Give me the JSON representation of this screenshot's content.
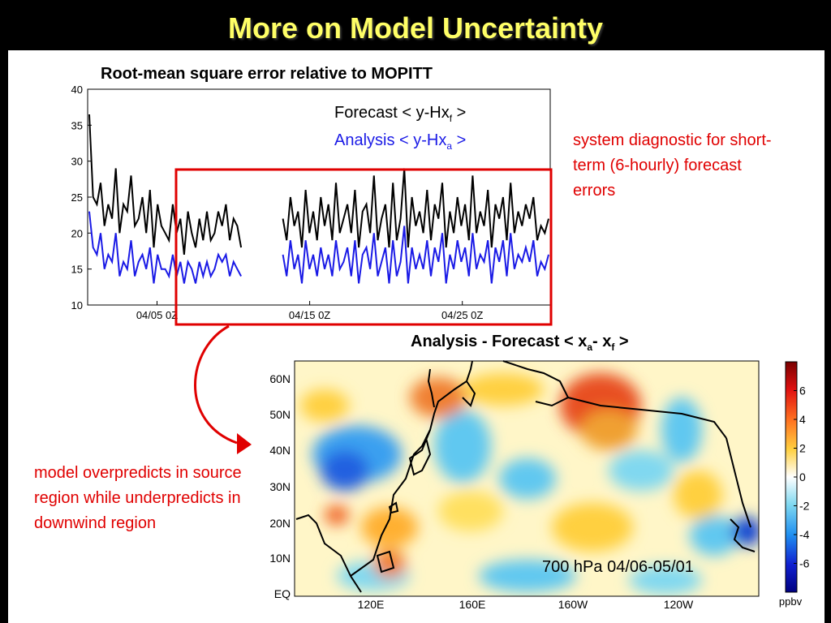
{
  "slide": {
    "title": "More on Model Uncertainty"
  },
  "colors": {
    "title": "#ffff66",
    "forecast": "#000000",
    "analysis": "#1a1ae6",
    "highlight": "#e00000"
  },
  "timeseries": {
    "title": "Root-mean square error relative to MOPITT",
    "legend": {
      "forecast_prefix": "Forecast < y-Hx",
      "forecast_sub": "f",
      "forecast_suffix": " >",
      "analysis_prefix": "Analysis < y-Hx",
      "analysis_sub": "a",
      "analysis_suffix": " >"
    },
    "note": "system diagnostic for short-term (6-hourly) forecast errors"
  },
  "map": {
    "title_prefix": "Analysis - Forecast < x",
    "title_sub1": "a",
    "title_mid": "- x",
    "title_sub2": "f",
    "title_suffix": " >",
    "label": "700 hPa 04/06-05/01",
    "note": "model overpredicts in source region while underpredicts in downwind region",
    "colorbar_unit": "ppbv"
  },
  "chart_data": [
    {
      "type": "line",
      "title": "Root-mean square error relative to MOPITT",
      "ylim": [
        10,
        40
      ],
      "yticks": [
        "40",
        "35",
        "30",
        "25",
        "20",
        "15",
        "10"
      ],
      "xticks": [
        "04/05 0Z",
        "04/15 0Z",
        "04/25 0Z"
      ],
      "xlabel": "",
      "ylabel": "",
      "series": [
        {
          "name": "Forecast < y-Hxf >",
          "values": [
            36.5,
            25,
            24,
            27,
            21,
            24,
            22,
            29,
            20,
            24,
            23,
            28,
            21,
            22,
            25,
            20,
            26,
            18,
            24,
            21,
            20,
            19,
            24,
            20,
            22,
            17,
            23,
            20,
            18,
            22,
            19,
            23,
            19,
            20,
            23,
            21,
            24,
            19,
            22,
            21,
            18,
            null,
            null,
            null,
            null,
            null,
            null,
            22,
            null,
            null,
            null,
            22,
            19,
            25,
            21,
            23,
            18,
            26,
            20,
            23,
            19,
            25,
            21,
            24,
            19,
            27,
            20,
            22,
            24,
            20,
            26,
            18,
            23,
            24,
            20,
            28,
            19,
            22,
            24,
            18,
            27,
            19,
            22,
            29,
            18,
            25,
            21,
            23,
            20,
            26,
            19,
            24,
            22,
            27,
            18,
            23,
            20,
            25,
            21,
            24,
            19,
            28,
            20,
            23,
            21,
            26,
            18,
            24,
            22,
            25,
            19,
            27,
            20,
            23,
            21,
            24,
            22,
            25,
            19,
            21,
            20,
            22
          ]
        },
        {
          "name": "Analysis < y-Hxa >",
          "values": [
            23,
            18,
            17,
            20,
            15,
            17,
            16,
            20,
            14,
            16,
            15,
            19,
            14,
            16,
            17,
            15,
            18,
            13,
            17,
            15,
            15,
            14,
            17,
            14,
            16,
            13,
            16,
            15,
            13,
            16,
            14,
            16,
            14,
            15,
            17,
            16,
            17,
            14,
            16,
            15,
            14,
            null,
            null,
            null,
            null,
            null,
            null,
            16,
            null,
            null,
            null,
            17,
            14,
            19,
            15,
            17,
            13,
            19,
            15,
            17,
            14,
            18,
            15,
            17,
            14,
            19,
            15,
            16,
            18,
            14,
            19,
            13,
            17,
            18,
            15,
            20,
            14,
            16,
            18,
            13,
            19,
            14,
            16,
            21,
            13,
            18,
            15,
            17,
            15,
            19,
            14,
            18,
            16,
            20,
            13,
            17,
            15,
            19,
            16,
            18,
            14,
            20,
            15,
            17,
            16,
            19,
            13,
            18,
            16,
            19,
            14,
            20,
            15,
            17,
            16,
            18,
            16,
            19,
            14,
            16,
            15,
            17
          ]
        }
      ]
    },
    {
      "type": "heatmap",
      "title": "Analysis - Forecast < xa- xf >",
      "ylabels": [
        "60N",
        "50N",
        "40N",
        "30N",
        "20N",
        "10N",
        "EQ"
      ],
      "xlabels": [
        "120E",
        "160E",
        "160W",
        "120W"
      ],
      "colorbar": {
        "ticks": [
          "6",
          "4",
          "2",
          "0",
          "-2",
          "-4",
          "-6"
        ],
        "range": [
          -8,
          8
        ],
        "unit": "ppbv"
      }
    }
  ]
}
